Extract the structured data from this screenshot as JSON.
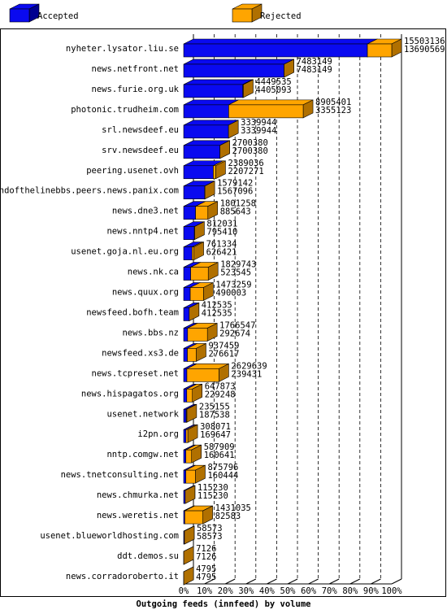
{
  "chart_data": {
    "type": "bar3d-stacked-horizontal",
    "x_label": "Outgoing feeds (innfeed) by volume",
    "categories": [
      "nyheter.lysator.liu.se",
      "news.netfront.net",
      "news.furie.org.uk",
      "photonic.trudheim.com",
      "srl.newsdeef.eu",
      "srv.newsdeef.eu",
      "peering.usenet.ovh",
      "endofthelinebbs.peers.news.panix.com",
      "news.dne3.net",
      "news.nntp4.net",
      "usenet.goja.nl.eu.org",
      "news.nk.ca",
      "news.quux.org",
      "newsfeed.bofh.team",
      "news.bbs.nz",
      "newsfeed.xs3.de",
      "news.tcpreset.net",
      "news.hispagatos.org",
      "usenet.network",
      "i2pn.org",
      "nntp.comgw.net",
      "news.tnetconsulting.net",
      "news.chmurka.net",
      "news.weretis.net",
      "usenet.blueworldhosting.com",
      "ddt.demos.su",
      "news.corradoroberto.it"
    ],
    "totals": [
      15503136,
      7483149,
      4449535,
      8905401,
      3339944,
      2700380,
      2389036,
      1579142,
      1801258,
      812031,
      761334,
      1829743,
      1473259,
      412535,
      1766547,
      937459,
      2629639,
      647873,
      235155,
      308071,
      587909,
      875796,
      115230,
      1431035,
      58573,
      7126,
      4795
    ],
    "series": [
      {
        "name": "Accepted",
        "color": "#0a0af0",
        "side": "#000090",
        "values": [
          13690569,
          7483149,
          4405093,
          3355123,
          3339944,
          2700380,
          2207271,
          1567096,
          885643,
          795410,
          626421,
          523545,
          490003,
          412535,
          292674,
          276617,
          239431,
          229248,
          187538,
          169647,
          160641,
          160444,
          115230,
          82583,
          58573,
          7126,
          4795
        ]
      },
      {
        "name": "Rejected",
        "color": "#ffa500",
        "side": "#b07000",
        "values": [
          1812567,
          0,
          44442,
          5550278,
          0,
          0,
          181765,
          12046,
          915615,
          16621,
          134913,
          1306198,
          983256,
          0,
          1473873,
          660842,
          2390208,
          418625,
          47617,
          138424,
          427268,
          715352,
          0,
          1348452,
          0,
          0,
          0
        ]
      }
    ],
    "xlim": [
      0,
      15503136
    ],
    "xticks": [
      {
        "value": 0,
        "label": "0%"
      },
      {
        "value": 1550313.6,
        "label": "10%"
      },
      {
        "value": 3100627.2,
        "label": "20%"
      },
      {
        "value": 4650940.8,
        "label": "30%"
      },
      {
        "value": 6201254.4,
        "label": "40%"
      },
      {
        "value": 7751568,
        "label": "50%"
      },
      {
        "value": 9301881.6,
        "label": "60%"
      },
      {
        "value": 10852195.2,
        "label": "70%"
      },
      {
        "value": 12402508.8,
        "label": "80%"
      },
      {
        "value": 13952822.4,
        "label": "90%"
      },
      {
        "value": 15503136,
        "label": "100%"
      }
    ],
    "grid": true
  }
}
